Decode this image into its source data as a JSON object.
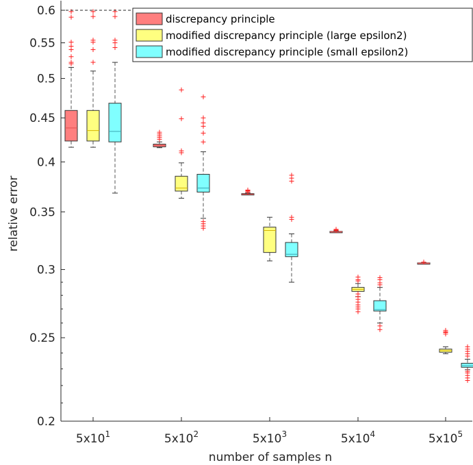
{
  "chart_data": {
    "type": "boxplot",
    "xlabel": "number of samples n",
    "ylabel": "relative error",
    "y_scale": "log",
    "ylim": [
      0.2,
      0.6
    ],
    "y_ticks": [
      {
        "value": 0.2,
        "label": "0.2"
      },
      {
        "value": 0.25,
        "label": "0.25"
      },
      {
        "value": 0.3,
        "label": "0.3"
      },
      {
        "value": 0.35,
        "label": "0.35"
      },
      {
        "value": 0.4,
        "label": "0.4"
      },
      {
        "value": 0.45,
        "label": "0.45"
      },
      {
        "value": 0.5,
        "label": "0.5"
      },
      {
        "value": 0.55,
        "label": "0.55"
      },
      {
        "value": 0.6,
        "label": "0.6"
      }
    ],
    "categories": [
      {
        "base": "5x10",
        "exp": "1"
      },
      {
        "base": "5x10",
        "exp": "2"
      },
      {
        "base": "5x10",
        "exp": "3"
      },
      {
        "base": "5x10",
        "exp": "4"
      },
      {
        "base": "5x10",
        "exp": "5"
      }
    ],
    "legend_position": "top-right",
    "grid": false,
    "reference_line": 0.6,
    "series": [
      {
        "name": "discrepancy principle",
        "color": "#ff7f7f",
        "boxes": [
          {
            "min": 0.416,
            "q1": 0.423,
            "median": 0.438,
            "q3": 0.459,
            "max": 0.515,
            "outliers": [
              0.522,
              0.52,
              0.53,
              0.54,
              0.545,
              0.551,
              0.589,
              0.598
            ]
          },
          {
            "min": 0.4155,
            "q1": 0.4165,
            "median": 0.418,
            "q3": 0.4195,
            "max": 0.422,
            "outliers": [
              0.425,
              0.427,
              0.429,
              0.431,
              0.433
            ]
          },
          {
            "min": 0.3665,
            "q1": 0.3667,
            "median": 0.367,
            "q3": 0.3675,
            "max": 0.368,
            "outliers": [
              0.369,
              0.37,
              0.3705,
              0.371
            ]
          },
          {
            "min": 0.3315,
            "q1": 0.3318,
            "median": 0.332,
            "q3": 0.3322,
            "max": 0.3325,
            "outliers": [
              0.333,
              0.3335,
              0.334
            ]
          },
          {
            "min": 0.3048,
            "q1": 0.305,
            "median": 0.3052,
            "q3": 0.3054,
            "max": 0.3056,
            "outliers": [
              0.306
            ]
          }
        ]
      },
      {
        "name": "modified discrepancy principle (large epsilon2)",
        "color": "#ffff80",
        "boxes": [
          {
            "min": 0.416,
            "q1": 0.423,
            "median": 0.435,
            "q3": 0.459,
            "max": 0.51,
            "outliers": [
              0.522,
              0.54,
              0.551,
              0.554,
              0.59,
              0.598
            ]
          },
          {
            "min": 0.363,
            "q1": 0.37,
            "median": 0.373,
            "q3": 0.385,
            "max": 0.399,
            "outliers": [
              0.41,
              0.412,
              0.449,
              0.485
            ]
          },
          {
            "min": 0.307,
            "q1": 0.314,
            "median": 0.333,
            "q3": 0.336,
            "max": 0.345
          },
          {
            "min": 0.279,
            "q1": 0.283,
            "median": 0.2845,
            "q3": 0.286,
            "max": 0.289,
            "outliers": [
              0.268,
              0.27,
              0.2715,
              0.273,
              0.275,
              0.277,
              0.279,
              0.281,
              0.291,
              0.292,
              0.294
            ]
          },
          {
            "min": 0.2395,
            "q1": 0.2405,
            "median": 0.2415,
            "q3": 0.2425,
            "max": 0.244,
            "outliers": [
              0.2525,
              0.2535,
              0.254,
              0.255
            ]
          }
        ]
      },
      {
        "name": "modified discrepancy principle (small epsilon2)",
        "color": "#80ffff",
        "boxes": [
          {
            "min": 0.368,
            "q1": 0.422,
            "median": 0.434,
            "q3": 0.468,
            "max": 0.522,
            "outliers": [
              0.543,
              0.55,
              0.554,
              0.59,
              0.598
            ]
          },
          {
            "min": 0.344,
            "q1": 0.369,
            "median": 0.373,
            "q3": 0.387,
            "max": 0.411,
            "outliers": [
              0.335,
              0.337,
              0.339,
              0.341,
              0.422,
              0.432,
              0.44,
              0.444,
              0.45,
              0.476
            ]
          },
          {
            "min": 0.29,
            "q1": 0.3105,
            "median": 0.3125,
            "q3": 0.3225,
            "max": 0.33,
            "outliers": [
              0.343,
              0.345,
              0.38,
              0.383,
              0.386
            ]
          },
          {
            "min": 0.26,
            "q1": 0.2685,
            "median": 0.2695,
            "q3": 0.276,
            "max": 0.286,
            "outliers": [
              0.2555,
              0.258,
              0.288,
              0.2895,
              0.292,
              0.2935
            ]
          },
          {
            "min": 0.2295,
            "q1": 0.231,
            "median": 0.232,
            "q3": 0.2335,
            "max": 0.236,
            "outliers": [
              0.223,
              0.2245,
              0.226,
              0.2275,
              0.2285,
              0.238,
              0.2395,
              0.241,
              0.2425,
              0.244
            ]
          }
        ]
      }
    ]
  }
}
